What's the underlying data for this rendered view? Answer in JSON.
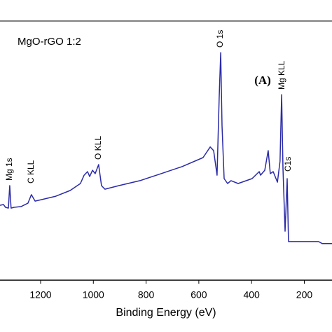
{
  "chart_data": {
    "type": "line",
    "x_label": "Binding Energy (eV)",
    "annotations": [
      "MgO-rGO 1:2",
      "(A)",
      "Mg 1s",
      "C KLL",
      "O KLL",
      "O 1s",
      "Mg KLL",
      "C1s"
    ],
    "xlim": [
      1354,
      95
    ],
    "xticks": [
      1200,
      1000,
      800,
      600,
      400,
      200
    ],
    "ylim": [
      0,
      100
    ],
    "series": [
      {
        "color": "#2b2ba8",
        "x": [
          1354,
          1341,
          1333,
          1322,
          1317,
          1312,
          1301,
          1274,
          1248,
          1235,
          1221,
          1195,
          1142,
          1088,
          1049,
          1035,
          1022,
          1014,
          1003,
          993,
          980,
          969,
          956,
          903,
          823,
          743,
          664,
          584,
          557,
          544,
          531,
          523,
          517,
          512,
          504,
          491,
          478,
          451,
          398,
          371,
          366,
          350,
          337,
          329,
          318,
          302,
          292,
          286,
          281,
          273,
          265,
          260,
          252,
          212,
          146,
          132,
          95
        ],
        "values": [
          28.9,
          29.2,
          28.1,
          27.8,
          36.5,
          27.8,
          28.1,
          28.4,
          29.7,
          33,
          30.5,
          31.1,
          32.4,
          34.6,
          37.3,
          40.5,
          41.9,
          40,
          42.4,
          41.1,
          44.6,
          36.5,
          35.1,
          36.5,
          38.4,
          41.1,
          43.8,
          47.3,
          51.4,
          50,
          40.5,
          70.3,
          87.8,
          59.5,
          39.2,
          37.3,
          38.4,
          37.3,
          39.2,
          41.9,
          40.5,
          42.4,
          50,
          41.1,
          41.9,
          37.8,
          45.9,
          71.6,
          43.2,
          18.9,
          39.2,
          14.9,
          14.9,
          14.9,
          14.9,
          14.1,
          14.1
        ]
      }
    ]
  }
}
